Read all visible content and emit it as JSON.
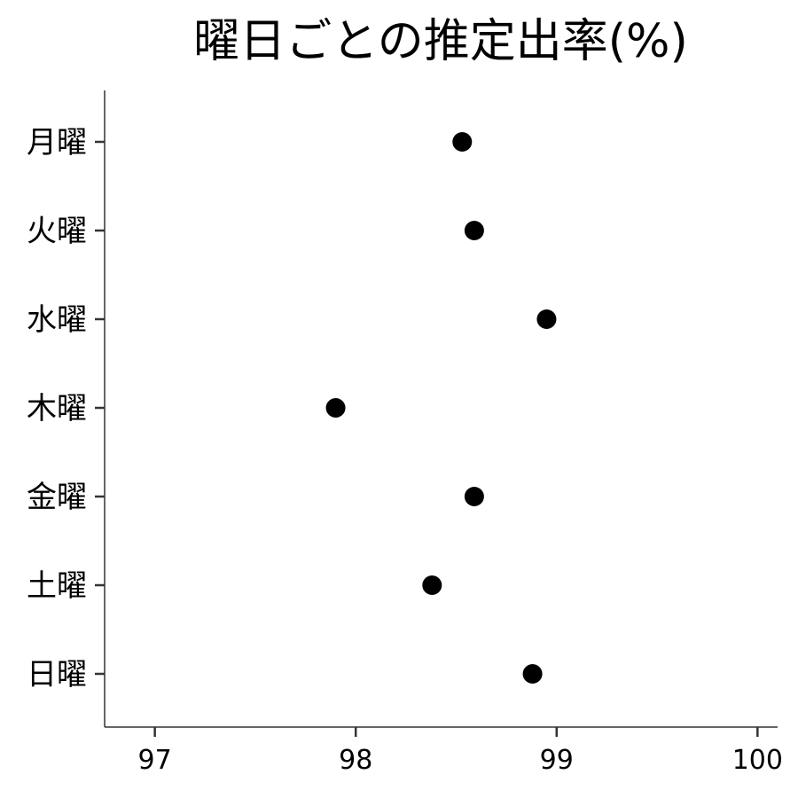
{
  "chart_data": {
    "type": "scatter",
    "title": "曜日ごとの推定出率(%)",
    "xlabel": "",
    "ylabel": "",
    "categories": [
      "月曜",
      "火曜",
      "水曜",
      "木曜",
      "金曜",
      "土曜",
      "日曜"
    ],
    "values": [
      98.53,
      98.59,
      98.95,
      97.9,
      98.59,
      98.38,
      98.88
    ],
    "xlim": [
      96.75,
      100.1
    ],
    "x_ticks": [
      "97",
      "98",
      "99",
      "100"
    ],
    "grid": false,
    "legend": "none",
    "point_color": "#000000",
    "axis_color": "#333333"
  }
}
